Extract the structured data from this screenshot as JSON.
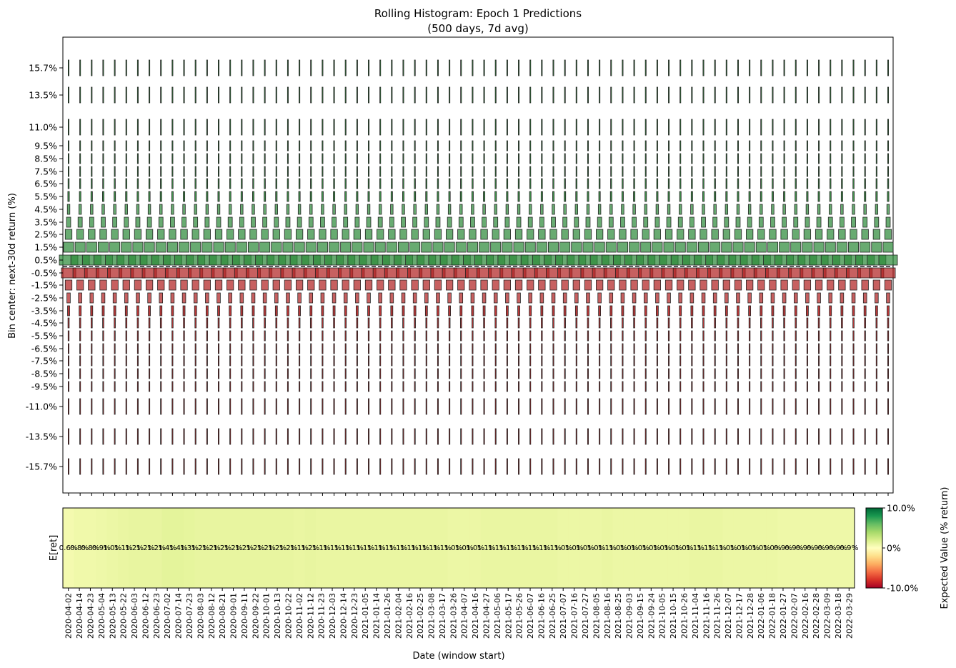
{
  "chart_data": {
    "type": "heatmap",
    "title": "Rolling Histogram: Epoch 1 Predictions",
    "subtitle": "(500 days, 7d avg)",
    "top_panel": {
      "ylabel": "Bin center: next-30d return (%)",
      "bins": [
        15.7,
        13.5,
        11.0,
        9.5,
        8.5,
        7.5,
        6.5,
        5.5,
        4.5,
        3.5,
        2.5,
        1.5,
        0.5,
        -0.5,
        -1.5,
        -2.5,
        -3.5,
        -4.5,
        -5.5,
        -6.5,
        -7.5,
        -8.5,
        -9.5,
        -11.0,
        -13.5,
        -15.7
      ],
      "bin_labels": [
        "15.7%",
        "13.5%",
        "11.0%",
        "9.5%",
        "8.5%",
        "7.5%",
        "6.5%",
        "5.5%",
        "4.5%",
        "3.5%",
        "2.5%",
        "1.5%",
        "0.5%",
        "-0.5%",
        "-1.5%",
        "-2.5%",
        "-3.5%",
        "-4.5%",
        "-5.5%",
        "-6.5%",
        "-7.5%",
        "-8.5%",
        "-9.5%",
        "-11.0%",
        "-13.5%",
        "-15.7%"
      ],
      "profile_probabilities": [
        0.004,
        0.004,
        0.006,
        0.007,
        0.008,
        0.01,
        0.013,
        0.018,
        0.03,
        0.05,
        0.08,
        0.12,
        0.22,
        0.17,
        0.08,
        0.04,
        0.025,
        0.015,
        0.012,
        0.01,
        0.008,
        0.007,
        0.006,
        0.005,
        0.004,
        0.004
      ],
      "positive_color": "#2e8b3a",
      "negative_color": "#b22222",
      "zero_line": "dashed"
    },
    "bottom_panel": {
      "ylabel": "E[ret]",
      "xlabel": "Date (window start)",
      "x_ticks": [
        "2020-04-02",
        "2020-04-14",
        "2020-04-23",
        "2020-05-04",
        "2020-05-13",
        "2020-05-22",
        "2020-06-03",
        "2020-06-12",
        "2020-06-23",
        "2020-07-02",
        "2020-07-14",
        "2020-07-23",
        "2020-08-03",
        "2020-08-12",
        "2020-08-21",
        "2020-09-01",
        "2020-09-11",
        "2020-09-22",
        "2020-10-01",
        "2020-10-13",
        "2020-10-22",
        "2020-11-02",
        "2020-11-12",
        "2020-11-23",
        "2020-12-03",
        "2020-12-14",
        "2020-12-23",
        "2021-01-05",
        "2021-01-14",
        "2021-01-26",
        "2021-02-04",
        "2021-02-16",
        "2021-02-25",
        "2021-03-08",
        "2021-03-17",
        "2021-03-26",
        "2021-04-07",
        "2021-04-16",
        "2021-04-27",
        "2021-05-06",
        "2021-05-17",
        "2021-05-26",
        "2021-06-07",
        "2021-06-16",
        "2021-06-25",
        "2021-07-07",
        "2021-07-16",
        "2021-07-27",
        "2021-08-05",
        "2021-08-16",
        "2021-08-25",
        "2021-09-03",
        "2021-09-15",
        "2021-09-24",
        "2021-10-05",
        "2021-10-15",
        "2021-10-26",
        "2021-11-04",
        "2021-11-16",
        "2021-11-26",
        "2021-12-07",
        "2021-12-17",
        "2021-12-28",
        "2022-01-06",
        "2022-01-18",
        "2022-01-27",
        "2022-02-07",
        "2022-02-16",
        "2022-02-28",
        "2022-03-09",
        "2022-03-18",
        "2022-03-29"
      ],
      "expected_values": [
        0.6,
        0.8,
        0.8,
        0.9,
        1.0,
        1.1,
        1.2,
        1.2,
        1.2,
        1.4,
        1.4,
        1.3,
        1.2,
        1.2,
        1.2,
        1.2,
        1.2,
        1.2,
        1.2,
        1.2,
        1.2,
        1.1,
        1.2,
        1.1,
        1.1,
        1.1,
        1.1,
        1.1,
        1.1,
        1.1,
        1.1,
        1.1,
        1.1,
        1.1,
        1.1,
        1.0,
        1.0,
        1.0,
        1.1,
        1.1,
        1.1,
        1.1,
        1.1,
        1.1,
        1.1,
        1.0,
        1.0,
        1.0,
        1.0,
        1.1,
        1.0,
        1.0,
        1.0,
        1.0,
        1.0,
        1.0,
        1.0,
        1.1,
        1.1,
        1.1,
        1.0,
        1.0,
        1.0,
        1.0,
        1.0,
        0.9,
        0.9,
        0.9,
        0.9,
        0.9,
        0.9,
        0.9
      ],
      "value_labels": [
        "0.6%",
        "0.8%",
        "0.8%",
        "0.9%",
        "1.0%",
        "1.1%",
        "1.2%",
        "1.2%",
        "1.2%",
        "1.4%",
        "1.4%",
        "1.3%",
        "1.2%",
        "1.2%",
        "1.2%",
        "1.2%",
        "1.2%",
        "1.2%",
        "1.2%",
        "1.2%",
        "1.2%",
        "1.1%",
        "1.2%",
        "1.1%",
        "1.1%",
        "1.1%",
        "1.1%",
        "1.1%",
        "1.1%",
        "1.1%",
        "1.1%",
        "1.1%",
        "1.1%",
        "1.1%",
        "1.1%",
        "1.0%",
        "1.0%",
        "1.0%",
        "1.1%",
        "1.1%",
        "1.1%",
        "1.1%",
        "1.1%",
        "1.1%",
        "1.1%",
        "1.0%",
        "1.0%",
        "1.0%",
        "1.0%",
        "1.1%",
        "1.0%",
        "1.0%",
        "1.0%",
        "1.0%",
        "1.0%",
        "1.0%",
        "1.0%",
        "1.1%",
        "1.1%",
        "1.1%",
        "1.0%",
        "1.0%",
        "1.0%",
        "1.0%",
        "1.0%",
        "0.9%",
        "0.9%",
        "0.9%",
        "0.9%",
        "0.9%",
        "0.9%",
        "0.9%"
      ]
    },
    "colorbar": {
      "label": "Expected Value (% return)",
      "colormap": "RdYlGn",
      "range": [
        -10,
        10
      ],
      "tick_labels": [
        "10.0%",
        "0%",
        "-10.0%"
      ]
    }
  }
}
